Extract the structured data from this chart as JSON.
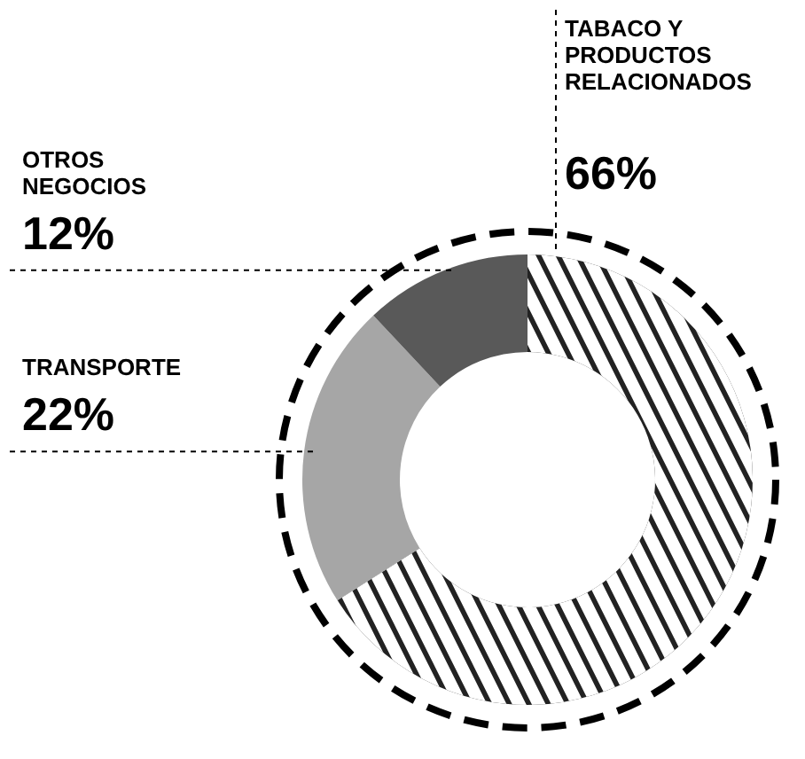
{
  "chart_data": {
    "type": "donut",
    "categories": [
      "TABACO Y PRODUCTOS RELACIONADOS",
      "TRANSPORTE",
      "OTROS NEGOCIOS"
    ],
    "values": [
      66,
      22,
      12
    ],
    "colors": [
      "#222222",
      "#a6a6a6",
      "#595959"
    ],
    "value_labels": [
      "66%",
      "22%",
      "12%"
    ]
  }
}
